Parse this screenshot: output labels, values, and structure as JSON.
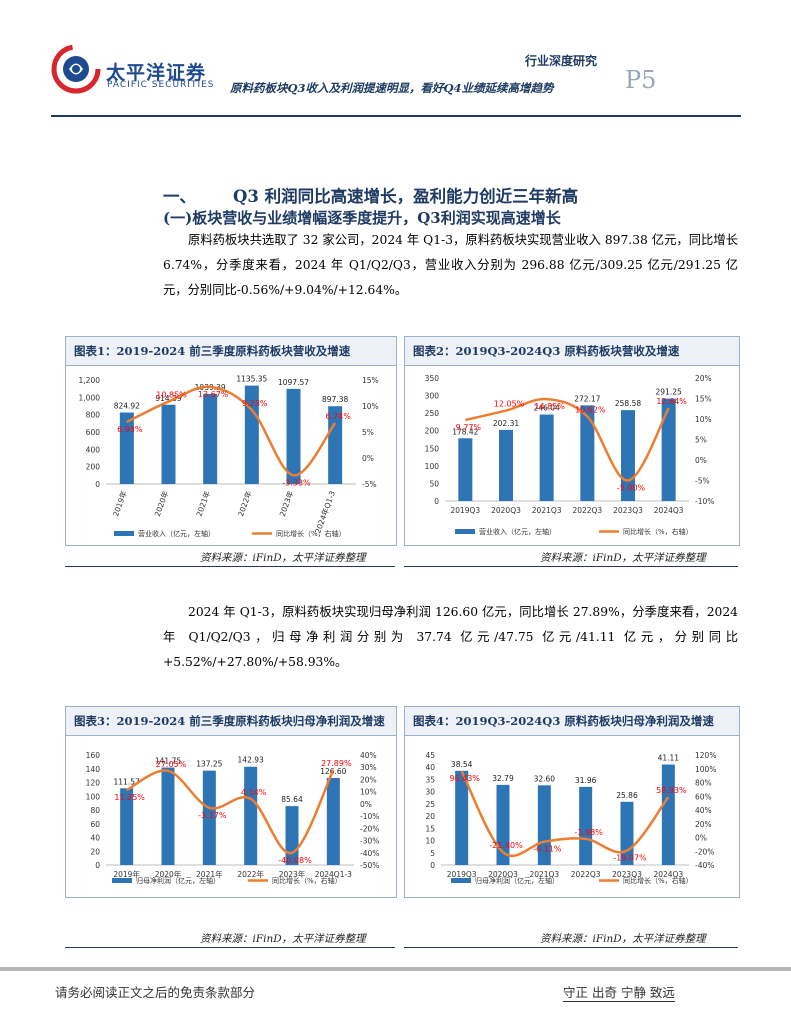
{
  "header": {
    "logo_cn": "太平洋证券",
    "logo_en": "PACIFIC SECURITIES",
    "report_type": "行业深度研究",
    "page": "P5",
    "subtitle": "原料药板块Q3收入及利润提速明显，看好Q4业绩延续高增趋势"
  },
  "section": {
    "h1_num": "一、",
    "h1_text": "Q3 利润同比高速增长，盈利能力创近三年新高",
    "h2": "(一)板块营收与业绩增幅逐季度提升，Q3利润实现高速增长"
  },
  "paragraphs": [
    "原料药板块共选取了 32 家公司，2024 年 Q1-3，原料药板块实现营业收入 897.38 亿元，同比增长 6.74%，分季度来看，2024 年 Q1/Q2/Q3，营业收入分别为 296.88 亿元/309.25 亿元/291.25 亿元，分别同比-0.56%/+9.04%/+12.64%。",
    "2024 年 Q1-3，原料药板块实现归母净利润 126.60 亿元，同比增长 27.89%，分季度来看，2024 年 Q1/Q2/Q3，归母净利润分别为 37.74 亿元/47.75 亿元/41.11 亿元，分别同比+5.52%/+27.80%/+58.93%。"
  ],
  "colors": {
    "bar": "#2e75b6",
    "line": "#ed7d31",
    "label_red": "#ff0000",
    "navy": "#1f3a63"
  },
  "charts": [
    {
      "title": "图表1：2019-2024 前三季度原料药板块营收及增速",
      "source": "资料来源：iFinD，太平洋证券整理",
      "legend_bar": "营业收入（亿元，左轴）",
      "legend_line": "同比增长（%，右轴）",
      "left_ticks": [
        "0",
        "200",
        "400",
        "600",
        "800",
        "1,000",
        "1,200"
      ],
      "right_ticks": [
        "-5%",
        "0%",
        "5%",
        "10%",
        "15%"
      ],
      "bar_label_texts": [
        "824.92",
        "914.39",
        "1039.39",
        "1135.35",
        "1097.57",
        "897.38"
      ],
      "line_label_texts": [
        "6.93%",
        "10.85%",
        "13.67%",
        "9.23%",
        "-3.33%",
        "6.74%"
      ]
    },
    {
      "title": "图表2：2019Q3-2024Q3 原料药板块营收及增速",
      "source": "资料来源：iFinD，太平洋证券整理",
      "legend_bar": "营业收入（亿元，左轴）",
      "legend_line": "同比增长（%，右轴）",
      "left_ticks": [
        "0",
        "50",
        "100",
        "150",
        "200",
        "250",
        "300",
        "350"
      ],
      "right_ticks": [
        "-10%",
        "-5%",
        "0%",
        "5%",
        "10%",
        "15%",
        "20%"
      ],
      "bar_label_texts": [
        "178.42",
        "202.31",
        "246.04",
        "272.17",
        "258.58",
        "291.25"
      ],
      "line_label_texts": [
        "9.77%",
        "12.05%",
        "14.85%",
        "10.62%",
        "-5.00%",
        "12.64%"
      ]
    },
    {
      "title": "图表3：2019-2024 前三季度原料药板块归母净利润及增速",
      "source": "资料来源：iFinD，太平洋证券整理",
      "legend_bar": "归母净利润（亿元，左轴）",
      "legend_line": "同比增长（%，右轴）",
      "left_ticks": [
        "0",
        "20",
        "40",
        "60",
        "80",
        "100",
        "120",
        "140",
        "160"
      ],
      "right_ticks": [
        "-50%",
        "-40%",
        "-30%",
        "-20%",
        "-10%",
        "0%",
        "10%",
        "20%",
        "30%",
        "40%"
      ],
      "bar_label_texts": [
        "111.57",
        "141.75",
        "137.25",
        "142.93",
        "85.64",
        "126.60"
      ],
      "line_label_texts": [
        "11.25%",
        "27.05%",
        "-3.17%",
        "4.14%",
        "-40.08%",
        "27.89%"
      ]
    },
    {
      "title": "图表4：2019Q3-2024Q3 原料药板块归母净利润及增速",
      "source": "资料来源：iFinD，太平洋证券整理",
      "legend_bar": "归母净利润（亿元，左轴）",
      "legend_line": "同比增长（%，右轴）",
      "left_ticks": [
        "0",
        "5",
        "10",
        "15",
        "20",
        "25",
        "30",
        "35",
        "40",
        "45"
      ],
      "right_ticks": [
        "-40%",
        "-20%",
        "0%",
        "20%",
        "40%",
        "60%",
        "80%",
        "100%",
        "120%"
      ],
      "bar_label_texts": [
        "38.54",
        "32.79",
        "32.60",
        "31.96",
        "25.86",
        "41.11"
      ],
      "line_label_texts": [
        "96.43%",
        "-21.40%",
        "-6.11%",
        "-1.98%",
        "-19.07%",
        "58.93%"
      ]
    }
  ],
  "chart_data": [
    {
      "type": "bar",
      "title": "图表1：2019-2024 前三季度原料药板块营收及增速",
      "categories": [
        "2019年",
        "2020年",
        "2021年",
        "2022年",
        "2023年",
        "2024年Q1-3"
      ],
      "series": [
        {
          "name": "营业收入（亿元，左轴）",
          "axis": "left",
          "values": [
            824.92,
            914.39,
            1039.39,
            1135.35,
            1097.57,
            897.38
          ]
        },
        {
          "name": "同比增长（%，右轴）",
          "axis": "right",
          "type": "line",
          "values": [
            6.93,
            10.85,
            13.67,
            9.23,
            -3.33,
            6.74
          ]
        }
      ],
      "ylim_left": [
        0,
        1200
      ],
      "ylim_right": [
        -5,
        15
      ],
      "rotate_x": true
    },
    {
      "type": "bar",
      "title": "图表2：2019Q3-2024Q3 原料药板块营收及增速",
      "categories": [
        "2019Q3",
        "2020Q3",
        "2021Q3",
        "2022Q3",
        "2023Q3",
        "2024Q3"
      ],
      "series": [
        {
          "name": "营业收入（亿元，左轴）",
          "axis": "left",
          "values": [
            178.42,
            202.31,
            246.04,
            272.17,
            258.58,
            291.25
          ]
        },
        {
          "name": "同比增长（%，右轴）",
          "axis": "right",
          "type": "line",
          "values": [
            9.77,
            12.05,
            14.85,
            10.62,
            -5.0,
            12.64
          ]
        }
      ],
      "ylim_left": [
        0,
        350
      ],
      "ylim_right": [
        -10,
        20
      ],
      "rotate_x": false
    },
    {
      "type": "bar",
      "title": "图表3：2019-2024 前三季度原料药板块归母净利润及增速",
      "categories": [
        "2019年",
        "2020年",
        "2021年",
        "2022年",
        "2023年",
        "2024Q1-3"
      ],
      "series": [
        {
          "name": "归母净利润（亿元，左轴）",
          "axis": "left",
          "values": [
            111.57,
            141.75,
            137.25,
            142.93,
            85.64,
            126.6
          ]
        },
        {
          "name": "同比增长（%，右轴）",
          "axis": "right",
          "type": "line",
          "values": [
            11.25,
            27.05,
            -3.17,
            4.14,
            -40.08,
            27.89
          ]
        }
      ],
      "ylim_left": [
        0,
        160
      ],
      "ylim_right": [
        -50,
        40
      ],
      "rotate_x": false
    },
    {
      "type": "bar",
      "title": "图表4：2019Q3-2024Q3 原料药板块归母净利润及增速",
      "categories": [
        "2019Q3",
        "2020Q3",
        "2021Q3",
        "2022Q3",
        "2023Q3",
        "2024Q3"
      ],
      "series": [
        {
          "name": "归母净利润（亿元，左轴）",
          "axis": "left",
          "values": [
            38.54,
            32.79,
            32.6,
            31.96,
            25.86,
            41.11
          ]
        },
        {
          "name": "同比增长（%，右轴）",
          "axis": "right",
          "type": "line",
          "values": [
            96.43,
            -21.4,
            -6.11,
            -1.98,
            -19.07,
            58.93
          ]
        }
      ],
      "ylim_left": [
        0,
        45
      ],
      "ylim_right": [
        -40,
        120
      ],
      "rotate_x": false
    }
  ],
  "footer": {
    "disclaimer": "请务必阅读正文之后的免责条款部分",
    "motto": "守正 出奇 宁静 致远"
  }
}
